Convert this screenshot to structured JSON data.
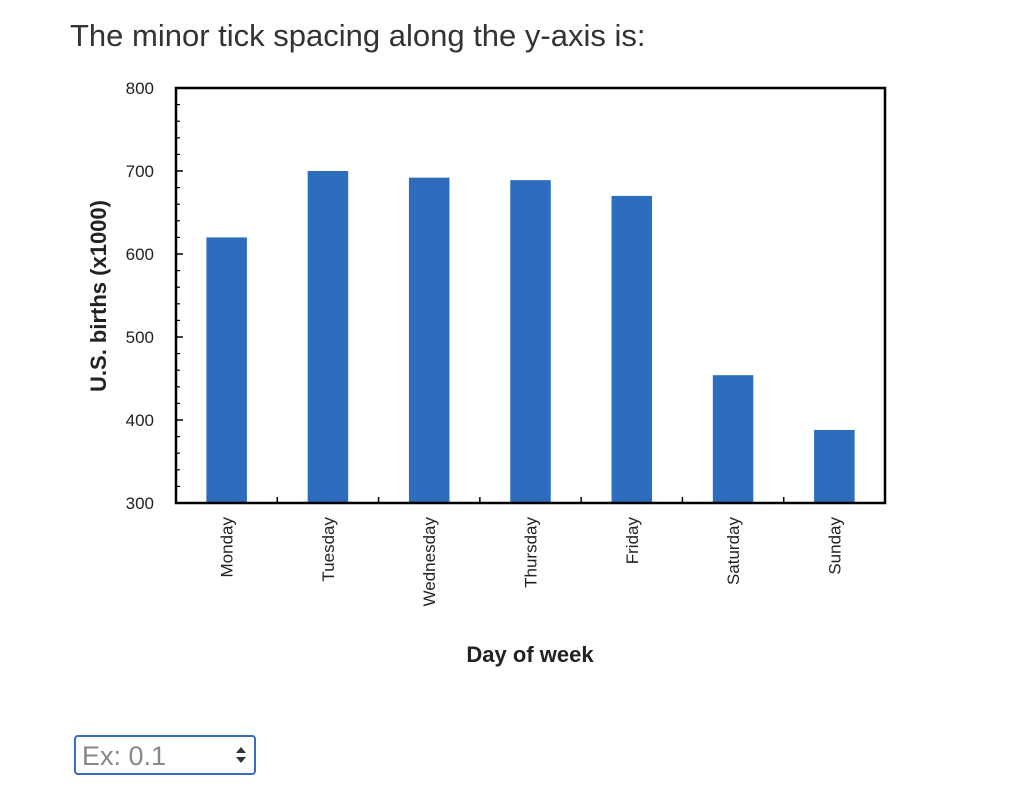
{
  "question": "The minor tick spacing along the y-axis is:",
  "chart_data": {
    "type": "bar",
    "x_label": "Day of week",
    "y_label": "U.S. births (x1000)",
    "categories": [
      "Monday",
      "Tuesday",
      "Wednesday",
      "Thursday",
      "Friday",
      "Saturday",
      "Sunday"
    ],
    "values": [
      620,
      700,
      692,
      689,
      670,
      454,
      388
    ],
    "color": "#2e6dbd",
    "ylim": [
      300,
      800
    ],
    "yticks": [
      300,
      400,
      500,
      600,
      700,
      800
    ],
    "y_minor_ticks": [
      320,
      340,
      360,
      380,
      420,
      440,
      460,
      480,
      520,
      540,
      560,
      580,
      620,
      640,
      660,
      680,
      720,
      740,
      760,
      780
    ],
    "grid": false
  },
  "answer_input": {
    "placeholder": "Ex: 0.1"
  }
}
